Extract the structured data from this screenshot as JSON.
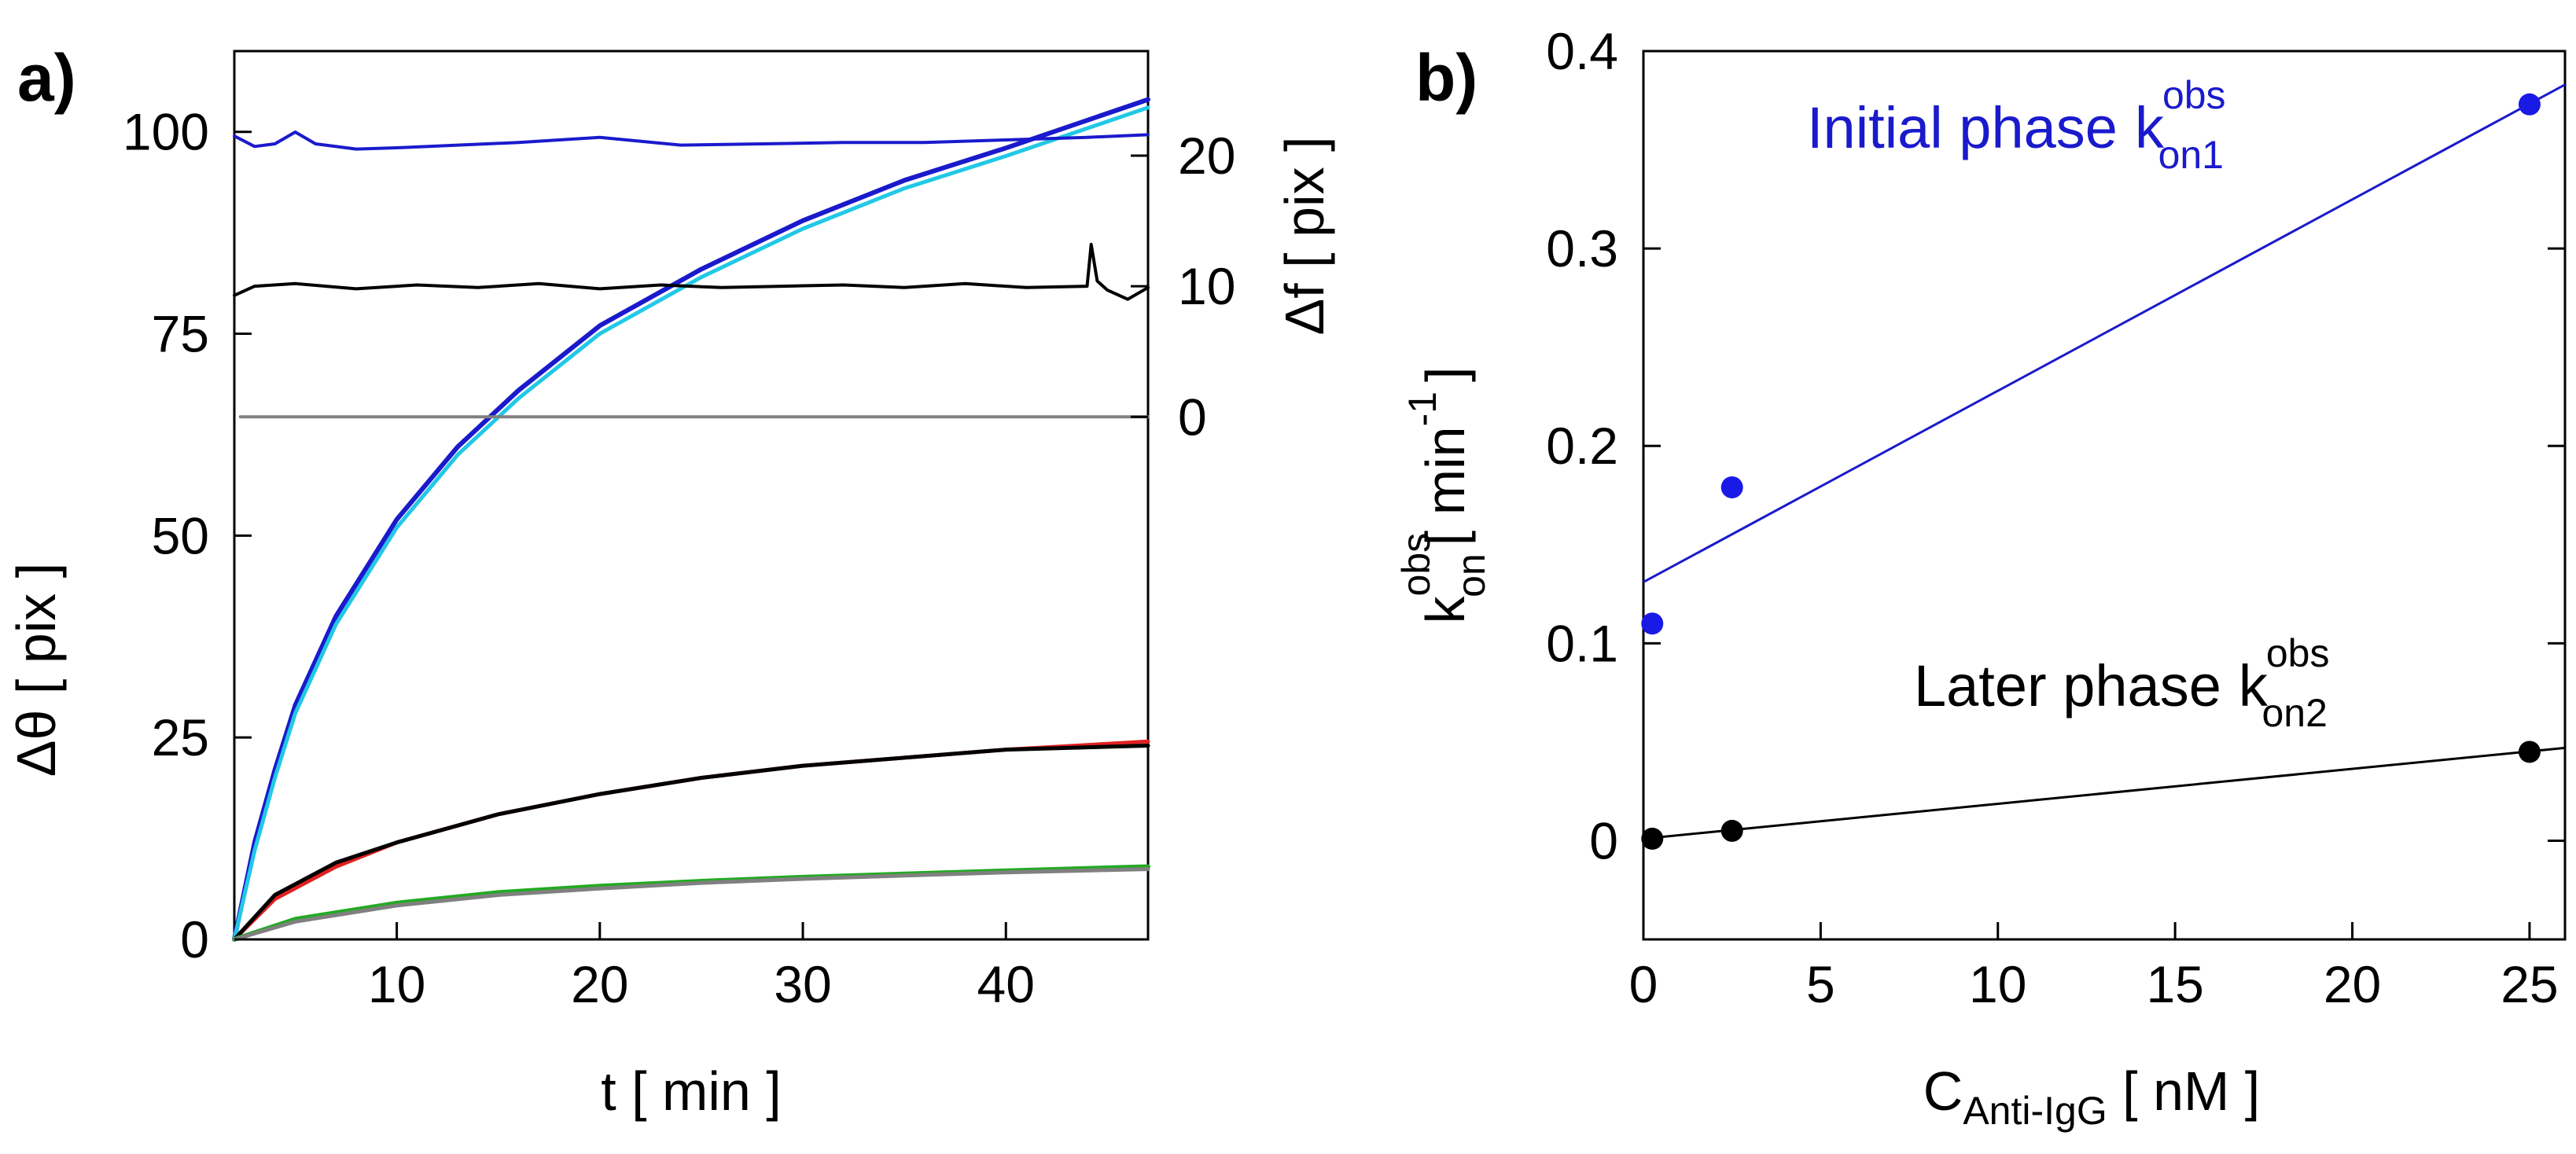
{
  "chart_data": [
    {
      "panel_label": "a)",
      "type": "line",
      "xlabel": "t [ min ]",
      "ylabel": "Δθ [ pix ]",
      "ylabel_right": "Δf [ pix ]",
      "xlim": [
        2,
        47
      ],
      "ylim": [
        0,
        110
      ],
      "ylim_right": [
        -40,
        28
      ],
      "x_ticks": [
        10,
        20,
        30,
        40
      ],
      "y_ticks": [
        0,
        25,
        50,
        75,
        100
      ],
      "y_ticks_right": [
        0,
        10,
        20
      ],
      "grid": false,
      "colors": {
        "blue": "#1a1acc",
        "cyan": "#22c8e6",
        "black": "#000000",
        "red": "#e02020",
        "gray": "#808080",
        "green": "#22aa22"
      },
      "series": [
        {
          "axis": "left",
          "color": "blue",
          "x": [
            2,
            3,
            4,
            5,
            7,
            10,
            13,
            16,
            20,
            25,
            30,
            35,
            40,
            47
          ],
          "y": [
            0,
            12,
            21,
            29,
            40,
            52,
            61,
            68,
            76,
            83,
            89,
            94,
            98,
            104
          ]
        },
        {
          "axis": "left",
          "color": "cyan",
          "x": [
            2,
            3,
            4,
            5,
            7,
            10,
            13,
            16,
            20,
            25,
            30,
            35,
            40,
            47
          ],
          "y": [
            0,
            11,
            20,
            28,
            39,
            51,
            60,
            67,
            75,
            82,
            88,
            93,
            97,
            103
          ]
        },
        {
          "axis": "left",
          "color": "red",
          "x": [
            2,
            4,
            7,
            10,
            15,
            20,
            25,
            30,
            35,
            40,
            47
          ],
          "y": [
            0,
            5,
            9,
            12,
            15.5,
            18,
            20,
            21.5,
            22.5,
            23.5,
            24.5
          ]
        },
        {
          "axis": "left",
          "color": "black",
          "x": [
            2,
            4,
            7,
            10,
            15,
            20,
            25,
            30,
            35,
            40,
            47
          ],
          "y": [
            0,
            5.5,
            9.5,
            12,
            15.5,
            18,
            20,
            21.5,
            22.5,
            23.5,
            24
          ]
        },
        {
          "axis": "left",
          "color": "green",
          "x": [
            2,
            5,
            10,
            15,
            20,
            25,
            30,
            35,
            40,
            47
          ],
          "y": [
            0,
            2.5,
            4.5,
            5.8,
            6.6,
            7.2,
            7.7,
            8.1,
            8.5,
            9
          ]
        },
        {
          "axis": "left",
          "color": "gray",
          "x": [
            2,
            5,
            10,
            15,
            20,
            25,
            30,
            35,
            40,
            47
          ],
          "y": [
            0,
            2.2,
            4.2,
            5.5,
            6.3,
            7,
            7.5,
            7.9,
            8.3,
            8.7
          ]
        },
        {
          "axis": "right",
          "color": "blue",
          "x": [
            2,
            3,
            4,
            5,
            6,
            8,
            10,
            13,
            16,
            20,
            24,
            28,
            32,
            36,
            40,
            44,
            47
          ],
          "y": [
            21.5,
            20.7,
            20.9,
            21.8,
            20.9,
            20.5,
            20.6,
            20.8,
            21.0,
            21.4,
            20.8,
            20.9,
            21.0,
            21.0,
            21.2,
            21.4,
            21.6
          ]
        },
        {
          "axis": "right",
          "color": "black",
          "x": [
            2,
            3,
            5,
            8,
            11,
            14,
            17,
            20,
            23,
            26,
            29,
            32,
            35,
            38,
            41,
            44.0,
            44.2,
            44.5,
            45,
            46,
            47
          ],
          "y": [
            9.3,
            10.0,
            10.2,
            9.8,
            10.1,
            9.9,
            10.2,
            9.8,
            10.1,
            9.9,
            10.0,
            10.1,
            9.9,
            10.2,
            9.9,
            10.0,
            13.2,
            10.4,
            9.7,
            9.0,
            9.9
          ]
        },
        {
          "axis": "right",
          "color": "gray",
          "x": [
            2.3,
            47
          ],
          "y": [
            0,
            0
          ]
        }
      ]
    },
    {
      "panel_label": "b)",
      "type": "scatter",
      "xlabel": "C",
      "xlabel_sub": "Anti-IgG",
      "xlabel_tail": " [ nM ]",
      "ylabel": "k",
      "ylabel_sup": "obs",
      "ylabel_sub": "on",
      "ylabel_tail": "[ min",
      "ylabel_tail_sup": "-1",
      "ylabel_end": "]",
      "xlim": [
        0,
        26
      ],
      "ylim": [
        -0.05,
        0.4
      ],
      "x_ticks": [
        0,
        5,
        10,
        15,
        20,
        25
      ],
      "y_ticks": [
        0,
        0.1,
        0.2,
        0.3,
        0.4
      ],
      "y_tick_labels": [
        "0",
        "0.1",
        "0.2",
        "0.3",
        "0.4"
      ],
      "grid": false,
      "series": [
        {
          "color": "#1a1ae6",
          "line_color": "#1a1acc",
          "annotation": "Initial phase",
          "annotation_k": "k",
          "annotation_sup": "obs",
          "annotation_sub": "on1",
          "points_x": [
            0.25,
            2.5,
            25
          ],
          "points_y": [
            0.11,
            0.179,
            0.373
          ],
          "fit_x": [
            0,
            26
          ],
          "fit_y": [
            0.131,
            0.383
          ]
        },
        {
          "color": "#000000",
          "line_color": "#000000",
          "annotation": "Later phase",
          "annotation_k": "k",
          "annotation_sup": "obs",
          "annotation_sub": "on2",
          "points_x": [
            0.25,
            2.5,
            25
          ],
          "points_y": [
            0.001,
            0.005,
            0.045
          ],
          "fit_x": [
            0,
            26
          ],
          "fit_y": [
            0.001,
            0.047
          ]
        }
      ]
    }
  ]
}
